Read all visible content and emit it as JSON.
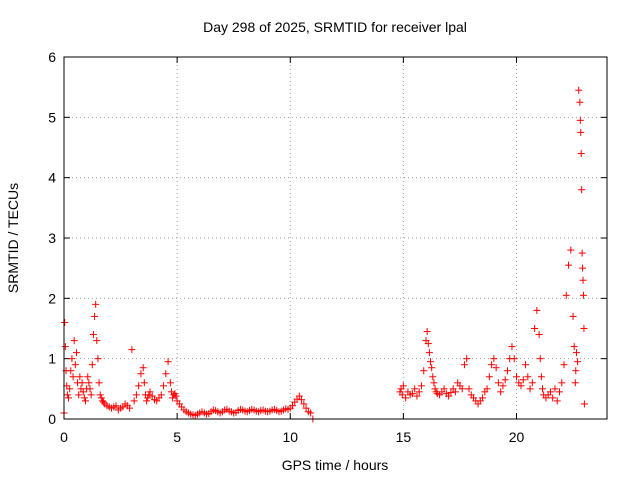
{
  "chart_data": {
    "type": "scatter",
    "title": "Day 298 of 2025, SRMTID for receiver lpal",
    "xlabel": "GPS time / hours",
    "ylabel": "SRMTID / TECUs",
    "xlim": [
      0,
      24
    ],
    "ylim": [
      0,
      6
    ],
    "xticks": [
      0,
      5,
      10,
      15,
      20
    ],
    "yticks": [
      0,
      1,
      2,
      3,
      4,
      5,
      6
    ],
    "grid": true,
    "marker": "+",
    "color": "#ff0000",
    "series": [
      {
        "name": "SRMTID",
        "x": [
          0.0,
          0.03,
          0.06,
          0.09,
          0.12,
          0.15,
          0.2,
          0.25,
          0.3,
          0.35,
          0.4,
          0.45,
          0.5,
          0.55,
          0.6,
          0.65,
          0.7,
          0.75,
          0.8,
          0.85,
          0.9,
          0.95,
          1.0,
          1.05,
          1.1,
          1.15,
          1.2,
          1.25,
          1.3,
          1.35,
          1.4,
          1.45,
          1.5,
          1.55,
          1.6,
          1.65,
          1.7,
          1.75,
          1.8,
          1.9,
          2.0,
          2.1,
          2.2,
          2.3,
          2.4,
          2.5,
          2.6,
          2.7,
          2.8,
          2.9,
          3.0,
          3.1,
          3.2,
          3.3,
          3.4,
          3.5,
          3.55,
          3.6,
          3.65,
          3.7,
          3.75,
          3.8,
          3.9,
          4.0,
          4.1,
          4.2,
          4.3,
          4.4,
          4.5,
          4.6,
          4.7,
          4.75,
          4.8,
          4.85,
          4.9,
          4.95,
          5.0,
          5.1,
          5.2,
          5.3,
          5.4,
          5.5,
          5.6,
          5.7,
          5.8,
          5.9,
          6.0,
          6.1,
          6.2,
          6.3,
          6.4,
          6.5,
          6.6,
          6.7,
          6.8,
          6.9,
          7.0,
          7.1,
          7.2,
          7.3,
          7.4,
          7.5,
          7.6,
          7.7,
          7.8,
          7.9,
          8.0,
          8.1,
          8.2,
          8.3,
          8.4,
          8.5,
          8.6,
          8.7,
          8.8,
          8.9,
          9.0,
          9.1,
          9.2,
          9.3,
          9.4,
          9.5,
          9.6,
          9.7,
          9.8,
          9.9,
          10.0,
          10.1,
          10.2,
          10.3,
          10.4,
          10.5,
          10.6,
          10.7,
          10.8,
          10.9,
          11.0,
          14.85,
          14.9,
          14.95,
          15.0,
          15.1,
          15.2,
          15.3,
          15.4,
          15.5,
          15.6,
          15.7,
          15.8,
          15.9,
          16.0,
          16.05,
          16.1,
          16.15,
          16.2,
          16.25,
          16.3,
          16.35,
          16.4,
          16.45,
          16.5,
          16.6,
          16.7,
          16.8,
          16.9,
          17.0,
          17.1,
          17.2,
          17.3,
          17.4,
          17.5,
          17.6,
          17.7,
          17.8,
          17.9,
          18.0,
          18.1,
          18.2,
          18.3,
          18.4,
          18.5,
          18.6,
          18.7,
          18.8,
          18.9,
          19.0,
          19.1,
          19.2,
          19.3,
          19.4,
          19.5,
          19.6,
          19.7,
          19.8,
          19.9,
          20.0,
          20.1,
          20.2,
          20.3,
          20.4,
          20.5,
          20.6,
          20.7,
          20.8,
          20.9,
          21.0,
          21.05,
          21.1,
          21.15,
          21.2,
          21.3,
          21.4,
          21.5,
          21.6,
          21.7,
          21.8,
          21.9,
          22.0,
          22.1,
          22.2,
          22.3,
          22.4,
          22.5,
          22.55,
          22.6,
          22.62,
          22.65,
          22.7,
          22.75,
          22.8,
          22.82,
          22.84,
          22.86,
          22.88,
          22.9,
          22.92,
          22.94,
          22.96,
          22.98,
          23.0
        ],
        "y": [
          0.1,
          1.6,
          1.2,
          0.8,
          0.55,
          0.4,
          0.35,
          0.5,
          0.8,
          1.0,
          0.7,
          1.3,
          0.9,
          1.1,
          0.6,
          0.4,
          0.7,
          0.5,
          0.6,
          0.45,
          0.35,
          0.3,
          0.5,
          0.7,
          0.6,
          0.5,
          0.4,
          0.9,
          1.4,
          1.7,
          1.9,
          1.3,
          1.0,
          0.6,
          0.4,
          0.35,
          0.3,
          0.28,
          0.25,
          0.22,
          0.2,
          0.18,
          0.2,
          0.22,
          0.15,
          0.18,
          0.2,
          0.25,
          0.22,
          0.18,
          1.15,
          0.3,
          0.4,
          0.55,
          0.75,
          0.85,
          0.6,
          0.4,
          0.3,
          0.35,
          0.4,
          0.45,
          0.38,
          0.32,
          0.3,
          0.35,
          0.4,
          0.55,
          0.75,
          0.95,
          0.6,
          0.45,
          0.35,
          0.4,
          0.42,
          0.38,
          0.3,
          0.25,
          0.2,
          0.15,
          0.12,
          0.1,
          0.08,
          0.07,
          0.06,
          0.08,
          0.1,
          0.12,
          0.1,
          0.08,
          0.09,
          0.12,
          0.15,
          0.14,
          0.12,
          0.1,
          0.12,
          0.15,
          0.16,
          0.13,
          0.12,
          0.1,
          0.11,
          0.14,
          0.16,
          0.15,
          0.13,
          0.12,
          0.14,
          0.16,
          0.15,
          0.13,
          0.12,
          0.14,
          0.15,
          0.13,
          0.12,
          0.13,
          0.15,
          0.16,
          0.14,
          0.12,
          0.13,
          0.15,
          0.17,
          0.16,
          0.18,
          0.22,
          0.28,
          0.33,
          0.38,
          0.32,
          0.25,
          0.18,
          0.12,
          0.1,
          0.0,
          0.45,
          0.5,
          0.4,
          0.55,
          0.35,
          0.45,
          0.4,
          0.42,
          0.5,
          0.38,
          0.45,
          0.55,
          0.8,
          1.3,
          1.45,
          1.25,
          1.1,
          0.95,
          0.85,
          0.7,
          0.6,
          0.5,
          0.45,
          0.42,
          0.4,
          0.45,
          0.5,
          0.42,
          0.38,
          0.44,
          0.5,
          0.45,
          0.6,
          0.55,
          0.5,
          0.9,
          1.0,
          0.5,
          0.4,
          0.35,
          0.3,
          0.25,
          0.3,
          0.35,
          0.45,
          0.5,
          0.7,
          0.9,
          1.0,
          0.85,
          0.6,
          0.45,
          0.55,
          0.65,
          0.8,
          1.0,
          1.2,
          1.0,
          0.7,
          0.6,
          0.55,
          0.65,
          0.9,
          0.7,
          0.5,
          0.6,
          1.5,
          1.8,
          1.4,
          1.0,
          0.7,
          0.5,
          0.4,
          0.35,
          0.4,
          0.45,
          0.35,
          0.5,
          0.3,
          0.45,
          0.6,
          0.9,
          2.05,
          2.55,
          2.8,
          1.7,
          1.2,
          0.6,
          0.8,
          1.1,
          0.95,
          5.45,
          5.25,
          4.95,
          4.75,
          4.4,
          3.8,
          2.75,
          2.5,
          2.3,
          2.05,
          1.5,
          0.25
        ]
      }
    ]
  }
}
